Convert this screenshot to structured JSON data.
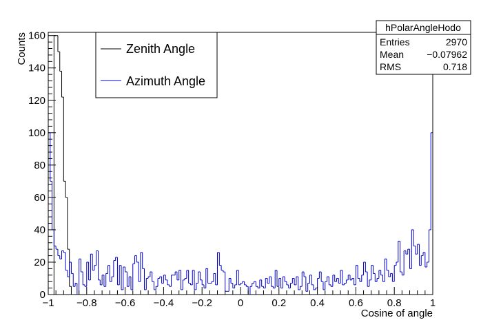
{
  "chart_data": {
    "type": "histogram",
    "title": "",
    "xlabel": "Cosine of angle",
    "ylabel": "Counts",
    "xlim": [
      -1,
      1
    ],
    "ylim": [
      0,
      162
    ],
    "x_ticks": [
      "−1",
      "−0.8",
      "−0.6",
      "−0.4",
      "−0.2",
      "0",
      "0.2",
      "0.4",
      "0.6",
      "0.8",
      "1"
    ],
    "y_ticks": [
      "0",
      "20",
      "40",
      "60",
      "80",
      "100",
      "120",
      "140",
      "160"
    ],
    "grid": false,
    "legend_position": "top-left",
    "stats_box": {
      "title": "hPolarAngleHodo",
      "rows": [
        {
          "label": "Entries",
          "value": "2970"
        },
        {
          "label": "Mean",
          "value": "−0.07962"
        },
        {
          "label": "RMS",
          "value": "0.718"
        }
      ]
    },
    "series": [
      {
        "name": "Zenith Angle",
        "color": "#000000",
        "bin_width": 0.01,
        "bins": [
          {
            "x": -1.0,
            "y": 0
          },
          {
            "x": -0.99,
            "y": 0
          },
          {
            "x": -0.98,
            "y": 0
          },
          {
            "x": -0.97,
            "y": 160
          },
          {
            "x": -0.96,
            "y": 160
          },
          {
            "x": -0.95,
            "y": 150
          },
          {
            "x": -0.94,
            "y": 138
          },
          {
            "x": -0.93,
            "y": 122
          },
          {
            "x": -0.92,
            "y": 70
          },
          {
            "x": -0.91,
            "y": 60
          },
          {
            "x": -0.9,
            "y": 28
          },
          {
            "x": -0.89,
            "y": 5
          },
          {
            "x": -0.88,
            "y": 0
          }
        ]
      },
      {
        "name": "Azimuth Angle",
        "color": "#0000cc",
        "bin_width": 0.01,
        "values": [
          100,
          70,
          40,
          30,
          28,
          24,
          22,
          27,
          26,
          15,
          11,
          20,
          13,
          5,
          7,
          0,
          22,
          14,
          6,
          5,
          20,
          9,
          25,
          15,
          18,
          27,
          9,
          6,
          12,
          5,
          13,
          18,
          8,
          11,
          21,
          23,
          6,
          18,
          3,
          17,
          14,
          5,
          11,
          3,
          19,
          24,
          20,
          8,
          26,
          16,
          3,
          10,
          11,
          14,
          8,
          3,
          5,
          10,
          11,
          7,
          12,
          9,
          6,
          5,
          12,
          12,
          14,
          9,
          15,
          3,
          9,
          10,
          15,
          7,
          6,
          15,
          3,
          7,
          14,
          9,
          6,
          4,
          16,
          7,
          7,
          8,
          13,
          6,
          26,
          18,
          15,
          14,
          2,
          2,
          10,
          7,
          4,
          6,
          15,
          6,
          7,
          8,
          6,
          5,
          0,
          5,
          7,
          8,
          5,
          4,
          9,
          5,
          4,
          10,
          7,
          11,
          5,
          4,
          15,
          5,
          10,
          4,
          11,
          8,
          6,
          4,
          7,
          10,
          6,
          11,
          3,
          5,
          14,
          11,
          2,
          7,
          12,
          6,
          3,
          4,
          10,
          14,
          8,
          3,
          8,
          11,
          6,
          5,
          12,
          8,
          10,
          7,
          15,
          6,
          7,
          9,
          12,
          9,
          10,
          6,
          18,
          10,
          8,
          12,
          20,
          14,
          5,
          9,
          18,
          13,
          8,
          10,
          15,
          12,
          8,
          22,
          15,
          11,
          13,
          8,
          18,
          20,
          33,
          14,
          12,
          27,
          25,
          28,
          16,
          40,
          30,
          25,
          31,
          18,
          24,
          26,
          17,
          20,
          40,
          100
        ]
      }
    ]
  }
}
